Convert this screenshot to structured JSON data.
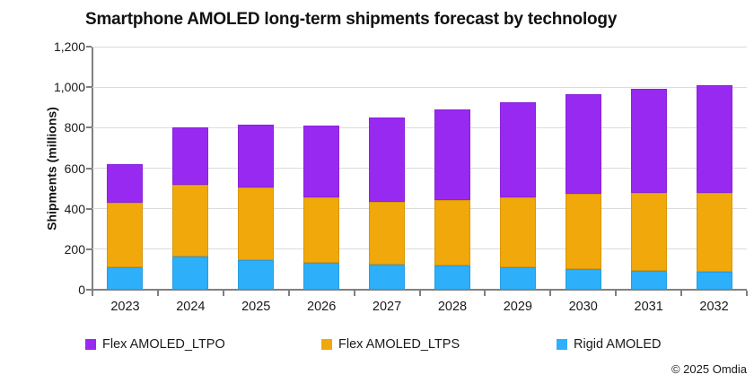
{
  "chart_data": {
    "type": "bar",
    "stacked": true,
    "title": "Smartphone AMOLED long-term shipments forecast by technology",
    "xlabel": "",
    "ylabel": "Shipments (millions)",
    "ylim": [
      0,
      1200
    ],
    "ytick_step": 200,
    "grid": true,
    "legend_position": "bottom",
    "categories": [
      "2023",
      "2024",
      "2025",
      "2026",
      "2027",
      "2028",
      "2029",
      "2030",
      "2031",
      "2032"
    ],
    "series": [
      {
        "name": "Flex AMOLED_LTPO",
        "color": "#9829f1",
        "values": [
          190,
          280,
          310,
          355,
          415,
          445,
          470,
          490,
          510,
          530
        ]
      },
      {
        "name": "Flex AMOLED_LTPS",
        "color": "#f0a80a",
        "values": [
          320,
          355,
          360,
          320,
          310,
          325,
          345,
          375,
          385,
          390
        ]
      },
      {
        "name": "Rigid AMOLED",
        "color": "#2daffa",
        "values": [
          110,
          165,
          145,
          135,
          125,
          120,
          110,
          100,
          95,
          90
        ]
      }
    ],
    "stack_bottom_to_top": [
      "Rigid AMOLED",
      "Flex AMOLED_LTPS",
      "Flex AMOLED_LTPO"
    ],
    "totals": [
      620,
      800,
      815,
      810,
      850,
      890,
      925,
      965,
      990,
      1010
    ]
  },
  "colors": {
    "gridline": "#dcdcdc",
    "axis": "#808080",
    "text": "#1a1a1a"
  },
  "footer": {
    "copyright": "© 2025 Omdia"
  }
}
